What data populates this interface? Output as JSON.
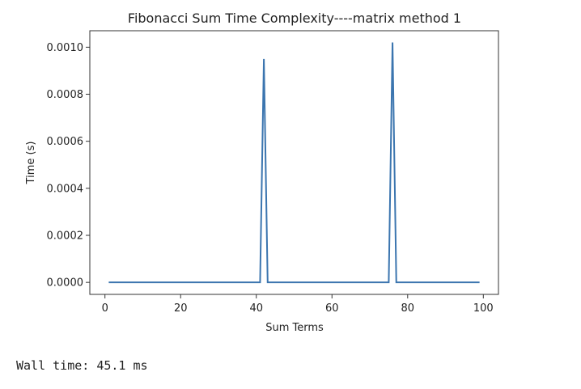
{
  "chart_data": {
    "type": "line",
    "title": "Fibonacci Sum Time Complexity----matrix method 1",
    "xlabel": "Sum Terms",
    "ylabel": "Time (s)",
    "xlim": [
      -4,
      104
    ],
    "ylim": [
      -5.1e-05,
      0.00107
    ],
    "xticks": [
      0,
      20,
      40,
      60,
      80,
      100
    ],
    "xtick_labels": [
      "0",
      "20",
      "40",
      "60",
      "80",
      "100"
    ],
    "yticks": [
      0,
      0.0002,
      0.0004,
      0.0006,
      0.0008,
      0.001
    ],
    "ytick_labels": [
      "0.0000",
      "0.0002",
      "0.0004",
      "0.0006",
      "0.0008",
      "0.0010"
    ],
    "grid": false,
    "series": [
      {
        "color": "#3b75af",
        "x": [
          1,
          41,
          42,
          43,
          75,
          76,
          77,
          99
        ],
        "y": [
          0,
          0,
          0.00095,
          0,
          0,
          0.00102,
          0,
          0
        ]
      }
    ]
  },
  "output": {
    "wall_time": "Wall time: 45.1 ms"
  }
}
